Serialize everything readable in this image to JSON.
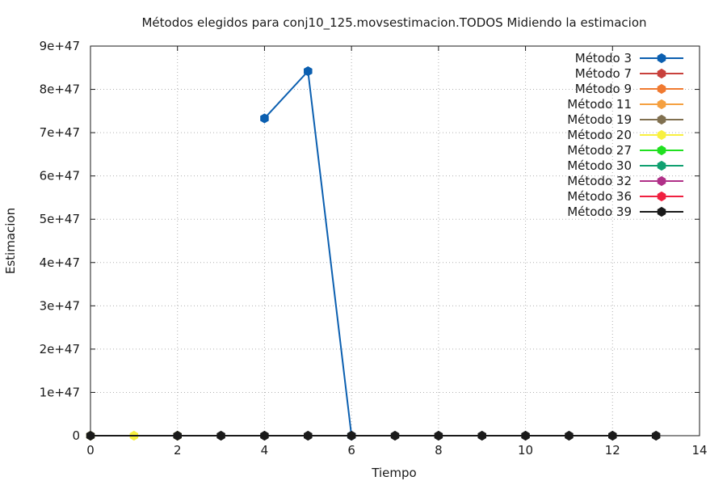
{
  "chart_data": {
    "type": "line",
    "title": "Métodos elegidos para conj10_125.movsestimacion.TODOS Midiendo la estimacion",
    "xlabel": "Tiempo",
    "ylabel": "Estimacion",
    "xlim": [
      0,
      14
    ],
    "ylim": [
      0,
      9e+47
    ],
    "grid": true,
    "legend_position": "top-right",
    "x_ticks": [
      "0",
      "2",
      "4",
      "6",
      "8",
      "10",
      "12",
      "14"
    ],
    "y_ticks": [
      "0",
      "1e+47",
      "2e+47",
      "3e+47",
      "4e+47",
      "5e+47",
      "6e+47",
      "7e+47",
      "8e+47",
      "9e+47"
    ],
    "series": [
      {
        "name": "Método 3",
        "color": "#0b5fb0",
        "points": [
          [
            4,
            7.33e+47
          ],
          [
            5,
            8.42e+47
          ],
          [
            6,
            0
          ]
        ]
      },
      {
        "name": "Método 7",
        "color": "#c8413c",
        "points": []
      },
      {
        "name": "Método 9",
        "color": "#f07a30",
        "points": []
      },
      {
        "name": "Método 11",
        "color": "#f5a040",
        "points": []
      },
      {
        "name": "Método 19",
        "color": "#807050",
        "points": []
      },
      {
        "name": "Método 20",
        "color": "#f8f040",
        "points": [
          [
            0,
            0
          ],
          [
            1,
            0
          ],
          [
            2,
            0
          ]
        ]
      },
      {
        "name": "Método 27",
        "color": "#20e020",
        "points": []
      },
      {
        "name": "Método 30",
        "color": "#10a070",
        "points": []
      },
      {
        "name": "Método 32",
        "color": "#b03088",
        "points": []
      },
      {
        "name": "Método 36",
        "color": "#f02040",
        "points": []
      },
      {
        "name": "Método 39",
        "color": "#1a1a1a",
        "points": [
          [
            0,
            0
          ],
          [
            2,
            0
          ],
          [
            3,
            0
          ],
          [
            4,
            0
          ],
          [
            5,
            0
          ],
          [
            6,
            0
          ],
          [
            7,
            0
          ],
          [
            8,
            0
          ],
          [
            9,
            0
          ],
          [
            10,
            0
          ],
          [
            11,
            0
          ],
          [
            12,
            0
          ],
          [
            13,
            0
          ]
        ]
      }
    ]
  }
}
